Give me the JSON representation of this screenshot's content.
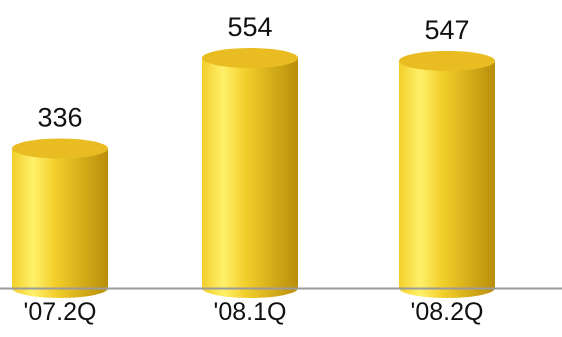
{
  "chart_data": {
    "type": "bar",
    "style": "cylinder",
    "categories": [
      "'07.2Q",
      "'08.1Q",
      "'08.2Q"
    ],
    "values": [
      336,
      554,
      547
    ],
    "data_labels": [
      "336",
      "554",
      "547"
    ],
    "title": "",
    "xlabel": "",
    "ylabel": "",
    "ylim": [
      0,
      620
    ],
    "grid": false,
    "legend": "none",
    "colors": {
      "bar_light": "#fff06a",
      "bar_mid": "#f2cf2a",
      "bar_dark": "#b98d0a",
      "bar_top": "#e9bd22",
      "axis": "#9a9a9a",
      "text": "#111111"
    }
  }
}
